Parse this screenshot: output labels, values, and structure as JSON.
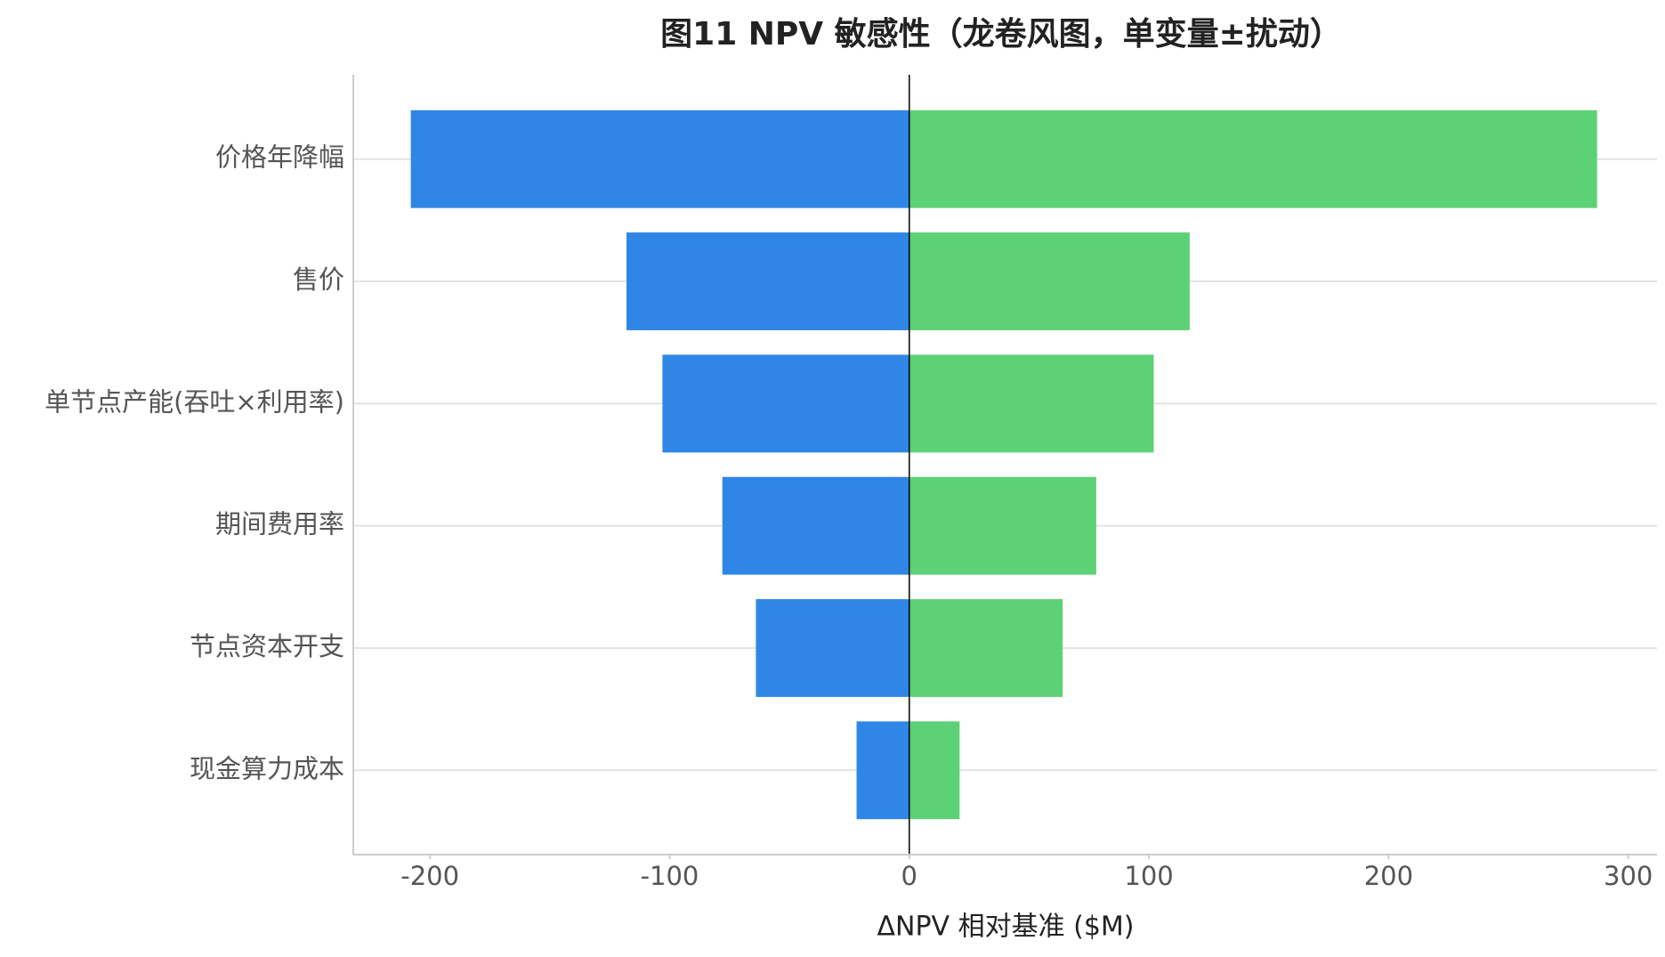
{
  "chart_data": {
    "type": "tornado",
    "title": "图11 NPV 敏感性（龙卷风图，单变量±扰动）",
    "x_label": "ΔNPV 相对基准 ($M)",
    "categories": [
      "价格年降幅",
      "售价",
      "单节点产能(吞吐×利用率)",
      "期间费用率",
      "节点资本开支",
      "现金算力成本"
    ],
    "series": [
      {
        "color": "#2f86e6",
        "values": [
          -208,
          -118,
          -103,
          -78,
          -64,
          -22
        ]
      },
      {
        "color": "#5cd176",
        "values": [
          287,
          117,
          102,
          78,
          64,
          21
        ]
      }
    ],
    "xlim": [
      -232,
      312
    ],
    "xticks": [
      -200,
      -100,
      0,
      100,
      200,
      300
    ],
    "grid": true
  }
}
